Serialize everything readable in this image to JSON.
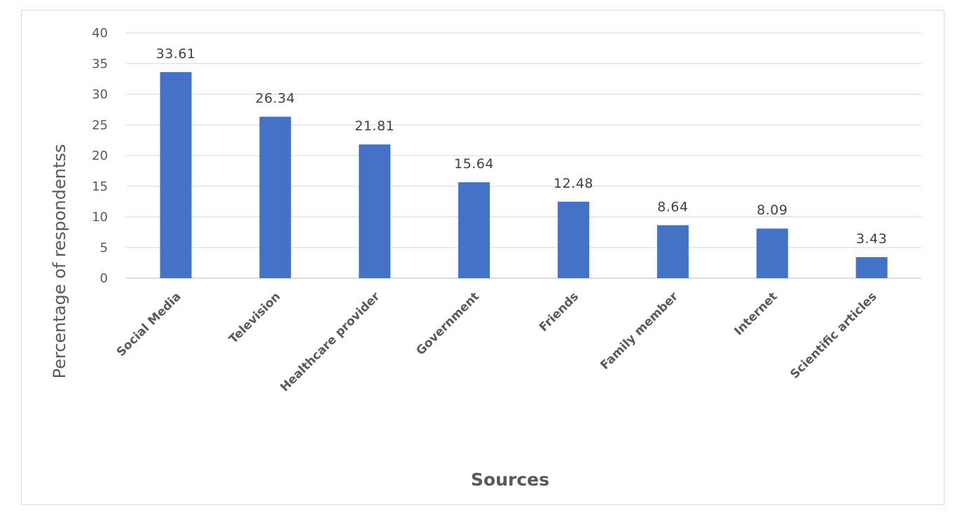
{
  "chart_data": {
    "type": "bar",
    "title": "",
    "xlabel": "Sources",
    "ylabel": "Percentage of respondentss",
    "categories": [
      "Social Media",
      "Television",
      "Healthcare provider",
      "Government",
      "Friends",
      "Family member",
      "Internet",
      "Scientific articles"
    ],
    "values": [
      33.61,
      26.34,
      21.81,
      15.64,
      12.48,
      8.64,
      8.09,
      3.43
    ],
    "data_labels": [
      "33.61",
      "26.34",
      "21.81",
      "15.64",
      "12.48",
      "8.64",
      "8.09",
      "3.43"
    ],
    "ylim": [
      0,
      40
    ],
    "yticks": [
      0,
      5,
      10,
      15,
      20,
      25,
      30,
      35,
      40
    ],
    "grid": true,
    "legend": "none",
    "bar_color": "#4472c4",
    "grid_color": "#d9d9d9"
  }
}
